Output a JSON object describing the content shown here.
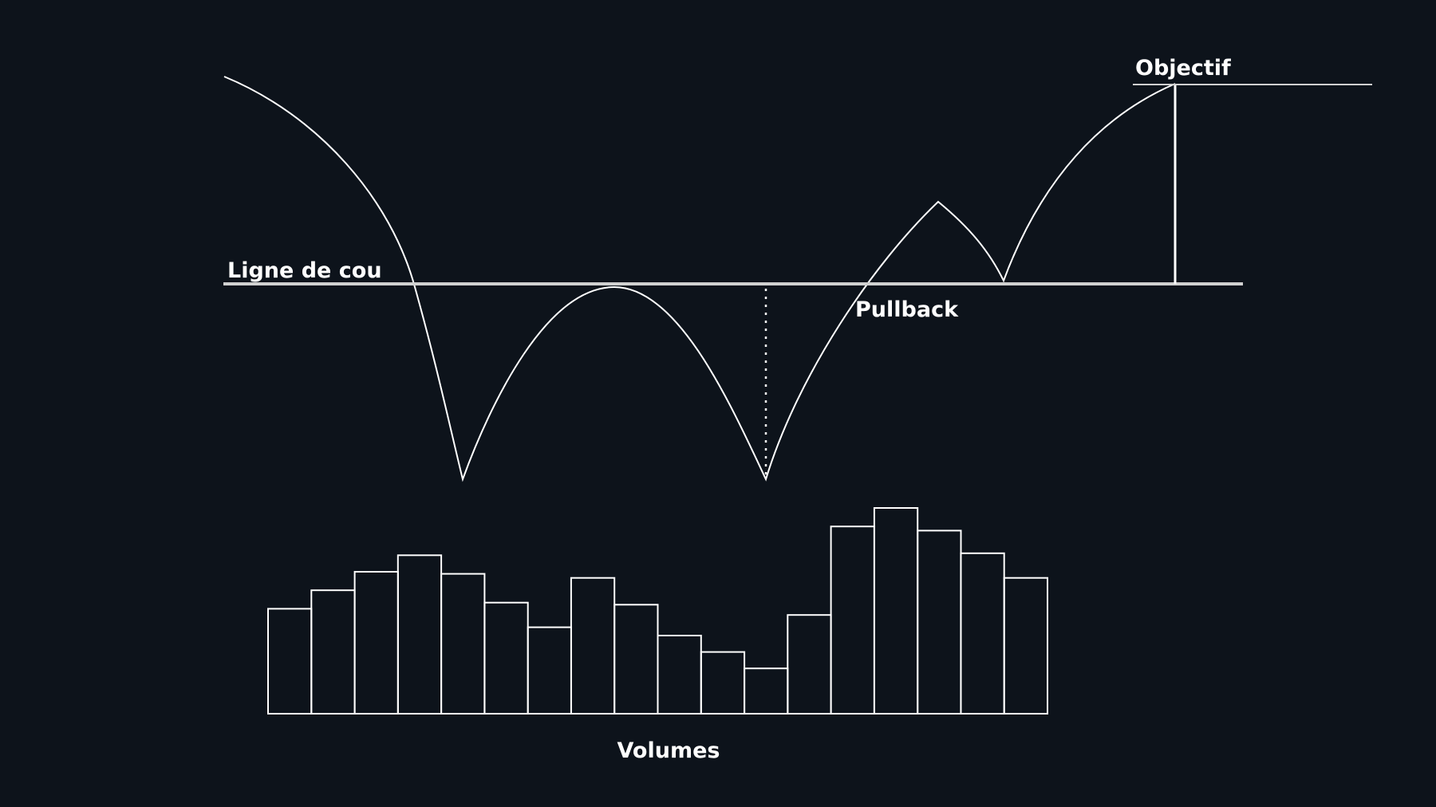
{
  "colors": {
    "background": "#0d131b",
    "stroke": "#ffffff",
    "neckline": "#d0d0d0"
  },
  "labels": {
    "neckline": "Ligne de cou",
    "pullback": "Pullback",
    "objective": "Objectif",
    "volumes": "Volumes"
  },
  "volumes": [
    0.51,
    0.6,
    0.69,
    0.77,
    0.68,
    0.54,
    0.42,
    0.66,
    0.53,
    0.38,
    0.3,
    0.22,
    0.48,
    0.91,
    1.0,
    0.89,
    0.78,
    0.66
  ]
}
